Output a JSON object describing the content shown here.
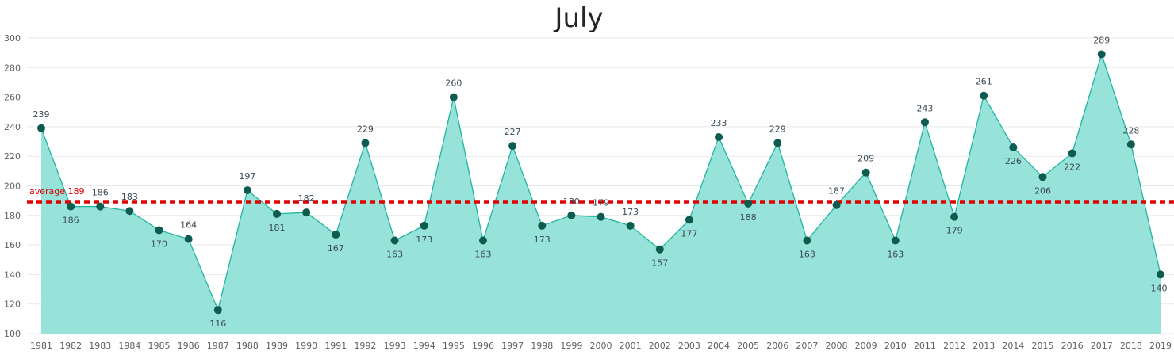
{
  "chart_data": {
    "type": "area",
    "title": "July",
    "xlabel": "",
    "ylabel": "",
    "x": [
      1981,
      1982,
      1983,
      1984,
      1985,
      1986,
      1987,
      1988,
      1989,
      1990,
      1991,
      1992,
      1993,
      1994,
      1995,
      1996,
      1997,
      1998,
      1999,
      2000,
      2001,
      2002,
      2003,
      2004,
      2005,
      2006,
      2007,
      2008,
      2009,
      2010,
      2011,
      2012,
      2013,
      2014,
      2015,
      2016,
      2017,
      2018,
      2019
    ],
    "series": [
      {
        "values": [
          239,
          186,
          186,
          183,
          170,
          164,
          116,
          197,
          181,
          182,
          167,
          229,
          163,
          173,
          260,
          163,
          227,
          173,
          180,
          179,
          173,
          157,
          177,
          233,
          188,
          229,
          163,
          187,
          209,
          163,
          243,
          179,
          261,
          226,
          206,
          222,
          289,
          228,
          140
        ]
      }
    ],
    "y_ticks": [
      100,
      120,
      140,
      160,
      180,
      200,
      220,
      240,
      260,
      280,
      300
    ],
    "ylim": [
      100,
      300
    ],
    "grid": true,
    "legend": "none",
    "reference_line": {
      "label": "average",
      "value": 189
    },
    "colors": {
      "area_fill": "#97e2d9",
      "line": "#1fb5a3",
      "marker": "#0d5c50",
      "average_line": "#e00000",
      "gridline": "#e9e9e9"
    }
  }
}
